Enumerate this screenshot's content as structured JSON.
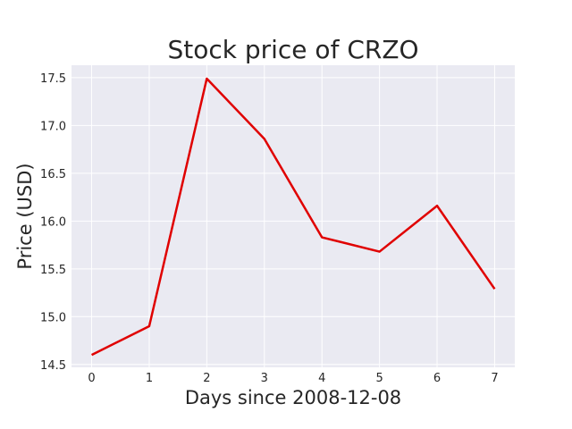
{
  "chart_data": {
    "type": "line",
    "title": "Stock price of CRZO",
    "xlabel": "Days since 2008-12-08",
    "ylabel": "Price (USD)",
    "x": [
      0,
      1,
      2,
      3,
      4,
      5,
      6,
      7
    ],
    "series": [
      {
        "values": [
          14.6,
          14.9,
          17.49,
          16.86,
          15.83,
          15.68,
          16.16,
          15.29
        ],
        "color": "#e00000"
      }
    ],
    "xticks": [
      0,
      1,
      2,
      3,
      4,
      5,
      6,
      7
    ],
    "yticks": [
      14.5,
      15.0,
      15.5,
      16.0,
      16.5,
      17.0,
      17.5
    ],
    "ytick_labels": [
      "14.5",
      "15.0",
      "15.5",
      "16.0",
      "16.5",
      "17.0",
      "17.5"
    ],
    "xlim": [
      -0.35,
      7.35
    ],
    "ylim": [
      14.47,
      17.63
    ],
    "grid": true,
    "background": "#eaeaf2",
    "grid_color": "#ffffff"
  }
}
